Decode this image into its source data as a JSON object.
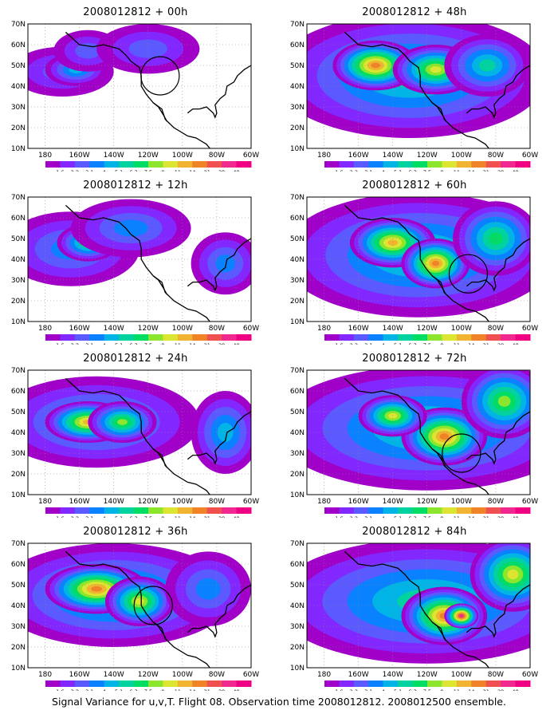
{
  "footer": "Signal Variance for u,v,T. Flight 08. Observation time 2008012812. 2008012500 ensemble.",
  "colorbar": {
    "labels": [
      "1.6",
      "2.2",
      "3.1",
      "4",
      "5.1",
      "6.3",
      "7.5",
      "9",
      "11",
      "14",
      "21",
      "29",
      "40"
    ],
    "colors": [
      "#a000c8",
      "#8228ff",
      "#5a5aff",
      "#0a82ff",
      "#00b4e6",
      "#00d2a0",
      "#00dc64",
      "#8ce62d",
      "#dce632",
      "#f0b430",
      "#f08228",
      "#f05050",
      "#f02890",
      "#f00082"
    ]
  },
  "axes": {
    "lon_labels": [
      "180",
      "160W",
      "140W",
      "120W",
      "100W",
      "80W",
      "60W"
    ],
    "lat_labels": [
      "70N",
      "60N",
      "50N",
      "40N",
      "30N",
      "20N",
      "10N"
    ]
  },
  "chart_data": [
    {
      "type": "heatmap",
      "title": "2008012812 + 00h",
      "xlim": [
        -190,
        -60
      ],
      "ylim": [
        10,
        70
      ],
      "grid": true,
      "circle": [
        -113,
        45
      ],
      "blobs": [
        [
          -170,
          47,
          30,
          12,
          2
        ],
        [
          -162,
          48,
          18,
          8,
          4
        ],
        [
          -155,
          57,
          20,
          10,
          2
        ],
        [
          -120,
          58,
          30,
          12,
          2
        ]
      ]
    },
    {
      "type": "heatmap",
      "title": "2008012812 + 12h",
      "xlim": [
        -190,
        -60
      ],
      "ylim": [
        10,
        70
      ],
      "grid": true,
      "blobs": [
        [
          -165,
          45,
          40,
          18,
          3
        ],
        [
          -155,
          48,
          18,
          9,
          6
        ],
        [
          -130,
          55,
          35,
          14,
          3
        ],
        [
          -75,
          38,
          20,
          15,
          3
        ]
      ]
    },
    {
      "type": "heatmap",
      "title": "2008012812 + 24h",
      "xlim": [
        -190,
        -60
      ],
      "ylim": [
        10,
        70
      ],
      "grid": true,
      "blobs": [
        [
          -150,
          45,
          60,
          22,
          4
        ],
        [
          -155,
          45,
          25,
          10,
          9
        ],
        [
          -135,
          45,
          20,
          10,
          7
        ],
        [
          -75,
          40,
          20,
          20,
          4
        ]
      ]
    },
    {
      "type": "heatmap",
      "title": "2008012812 + 36h",
      "xlim": [
        -190,
        -60
      ],
      "ylim": [
        10,
        70
      ],
      "grid": true,
      "circle": [
        -117,
        40
      ],
      "blobs": [
        [
          -140,
          45,
          70,
          25,
          5
        ],
        [
          -150,
          48,
          30,
          12,
          10
        ],
        [
          -125,
          42,
          20,
          12,
          8
        ],
        [
          -85,
          48,
          25,
          18,
          3
        ]
      ]
    },
    {
      "type": "heatmap",
      "title": "2008012812 + 48h",
      "xlim": [
        -190,
        -60
      ],
      "ylim": [
        10,
        70
      ],
      "grid": true,
      "blobs": [
        [
          -130,
          45,
          80,
          30,
          5
        ],
        [
          -150,
          50,
          25,
          12,
          10
        ],
        [
          -115,
          48,
          25,
          12,
          8
        ],
        [
          -85,
          50,
          25,
          15,
          5
        ]
      ]
    },
    {
      "type": "heatmap",
      "title": "2008012812 + 60h",
      "xlim": [
        -190,
        -60
      ],
      "ylim": [
        10,
        70
      ],
      "grid": true,
      "circle": [
        -96,
        33
      ],
      "blobs": [
        [
          -125,
          42,
          80,
          30,
          5
        ],
        [
          -140,
          48,
          25,
          12,
          9
        ],
        [
          -115,
          38,
          20,
          12,
          10
        ],
        [
          -80,
          50,
          25,
          18,
          6
        ]
      ]
    },
    {
      "type": "heatmap",
      "title": "2008012812 + 72h",
      "xlim": [
        -190,
        -60
      ],
      "ylim": [
        10,
        70
      ],
      "grid": true,
      "circle": [
        -100,
        30
      ],
      "blobs": [
        [
          -120,
          42,
          90,
          30,
          5
        ],
        [
          -110,
          38,
          25,
          14,
          10
        ],
        [
          -140,
          48,
          20,
          10,
          8
        ],
        [
          -75,
          55,
          25,
          18,
          7
        ]
      ]
    },
    {
      "type": "heatmap",
      "title": "2008012812 + 84h",
      "xlim": [
        -190,
        -60
      ],
      "ylim": [
        10,
        70
      ],
      "grid": true,
      "blobs": [
        [
          -120,
          42,
          90,
          30,
          5
        ],
        [
          -110,
          35,
          25,
          14,
          10
        ],
        [
          -100,
          35,
          10,
          6,
          12
        ],
        [
          -70,
          55,
          25,
          18,
          8
        ]
      ]
    }
  ]
}
